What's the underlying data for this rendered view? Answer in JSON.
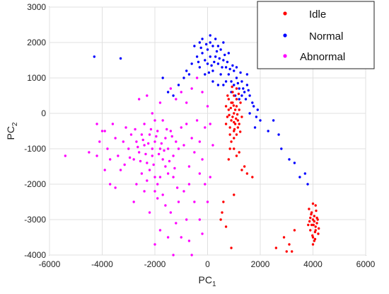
{
  "chart_data": {
    "type": "scatter",
    "title": "",
    "xlabel_main": "PC",
    "xlabel_sub": "1",
    "ylabel_main": "PC",
    "ylabel_sub": "2",
    "xlim": [
      -6000,
      6000
    ],
    "ylim": [
      -4000,
      3000
    ],
    "xticks": [
      -6000,
      -4000,
      -2000,
      0,
      2000,
      4000,
      6000
    ],
    "yticks": [
      3000,
      2000,
      1000,
      0,
      -1000,
      -2000,
      -3000,
      -4000
    ],
    "xtick_labels": [
      "-6000",
      "-4000",
      "-2000",
      "0",
      "2000",
      "4000",
      "6000"
    ],
    "ytick_labels": [
      "3000",
      "2000",
      "1000",
      "0",
      "-1000",
      "-2000",
      "-3000",
      "-4000"
    ],
    "grid": true,
    "legend_position": "top-right",
    "series": [
      {
        "name": "Idle",
        "color": "#ff0000",
        "points": [
          [
            900,
            300
          ],
          [
            1000,
            500
          ],
          [
            1100,
            200
          ],
          [
            800,
            100
          ],
          [
            950,
            -100
          ],
          [
            1050,
            -300
          ],
          [
            1150,
            -200
          ],
          [
            850,
            -400
          ],
          [
            1000,
            -500
          ],
          [
            1200,
            100
          ],
          [
            700,
            200
          ],
          [
            900,
            -200
          ],
          [
            1100,
            -600
          ],
          [
            1000,
            0
          ],
          [
            800,
            400
          ],
          [
            1250,
            300
          ],
          [
            950,
            600
          ],
          [
            1100,
            700
          ],
          [
            1300,
            -100
          ],
          [
            750,
            -100
          ],
          [
            1000,
            -700
          ],
          [
            900,
            -800
          ],
          [
            1150,
            -400
          ],
          [
            850,
            -600
          ],
          [
            1050,
            100
          ],
          [
            1200,
            -300
          ],
          [
            700,
            -300
          ],
          [
            950,
            300
          ],
          [
            1100,
            400
          ],
          [
            1000,
            -250
          ],
          [
            880,
            150
          ],
          [
            1180,
            550
          ],
          [
            820,
            -50
          ],
          [
            1020,
            -450
          ],
          [
            930,
            750
          ],
          [
            1080,
            -150
          ],
          [
            1240,
            -520
          ],
          [
            760,
            500
          ],
          [
            990,
            220
          ],
          [
            1130,
            -30
          ],
          [
            1000,
            -1000
          ],
          [
            1100,
            -1200
          ],
          [
            850,
            -1000
          ],
          [
            1300,
            -1600
          ],
          [
            1500,
            -1700
          ],
          [
            1700,
            -1800
          ],
          [
            600,
            -2500
          ],
          [
            550,
            -2800
          ],
          [
            500,
            -3000
          ],
          [
            1000,
            -2300
          ],
          [
            1400,
            -1500
          ],
          [
            800,
            -1300
          ],
          [
            2900,
            -3500
          ],
          [
            3100,
            -3700
          ],
          [
            3200,
            -3900
          ],
          [
            3300,
            -3300
          ],
          [
            2600,
            -3800
          ],
          [
            3000,
            -3900
          ],
          [
            900,
            -3800
          ],
          [
            700,
            -3200
          ],
          [
            1200,
            -1100
          ],
          [
            4000,
            -3000
          ],
          [
            4100,
            -3200
          ],
          [
            3950,
            -2800
          ],
          [
            4150,
            -3100
          ],
          [
            4050,
            -2900
          ],
          [
            3900,
            -3300
          ],
          [
            4200,
            -3400
          ],
          [
            4000,
            -3500
          ],
          [
            3850,
            -2700
          ],
          [
            4100,
            -2600
          ],
          [
            4050,
            -3600
          ],
          [
            3950,
            -3150
          ],
          [
            4180,
            -3000
          ],
          [
            3900,
            -2950
          ],
          [
            4080,
            -3350
          ],
          [
            4000,
            -3700
          ],
          [
            4120,
            -2750
          ],
          [
            3870,
            -3050
          ],
          [
            4220,
            -3250
          ],
          [
            3980,
            -3450
          ],
          [
            4050,
            -3050
          ],
          [
            4100,
            -3300
          ],
          [
            3930,
            -2850
          ],
          [
            4150,
            -2950
          ],
          [
            4020,
            -3150
          ],
          [
            4000,
            -2550
          ],
          [
            4080,
            -3550
          ],
          [
            3820,
            -3150
          ]
        ]
      },
      {
        "name": "Normal",
        "color": "#0000ff",
        "points": [
          [
            0,
            1800
          ],
          [
            100,
            2000
          ],
          [
            200,
            1900
          ],
          [
            -200,
            1700
          ],
          [
            300,
            1600
          ],
          [
            -100,
            1500
          ],
          [
            400,
            1400
          ],
          [
            500,
            1800
          ],
          [
            600,
            1500
          ],
          [
            -300,
            1300
          ],
          [
            200,
            1200
          ],
          [
            700,
            1300
          ],
          [
            800,
            1100
          ],
          [
            900,
            900
          ],
          [
            1000,
            800
          ],
          [
            1100,
            1000
          ],
          [
            1200,
            700
          ],
          [
            1300,
            900
          ],
          [
            1400,
            600
          ],
          [
            1500,
            800
          ],
          [
            1600,
            500
          ],
          [
            1200,
            400
          ],
          [
            1000,
            1200
          ],
          [
            300,
            2100
          ],
          [
            -400,
            1600
          ],
          [
            -600,
            1400
          ],
          [
            -800,
            1200
          ],
          [
            0,
            1400
          ],
          [
            500,
            1100
          ],
          [
            600,
            2000
          ],
          [
            -200,
            2100
          ],
          [
            100,
            1600
          ],
          [
            400,
            1900
          ],
          [
            800,
            1700
          ],
          [
            -500,
            1900
          ],
          [
            700,
            900
          ],
          [
            900,
            600
          ],
          [
            1100,
            1300
          ],
          [
            1300,
            500
          ],
          [
            1500,
            1100
          ],
          [
            200,
            900
          ],
          [
            -100,
            1100
          ],
          [
            350,
            1750
          ],
          [
            150,
            1350
          ],
          [
            -50,
            1950
          ],
          [
            650,
            1650
          ],
          [
            850,
            1250
          ],
          [
            1050,
            500
          ],
          [
            1250,
            1150
          ],
          [
            1450,
            400
          ],
          [
            -350,
            1450
          ],
          [
            50,
            1150
          ],
          [
            450,
            1550
          ],
          [
            750,
            1450
          ],
          [
            950,
            1350
          ],
          [
            -250,
            1850
          ],
          [
            250,
            1450
          ],
          [
            550,
            1300
          ],
          [
            1150,
            850
          ],
          [
            1350,
            700
          ],
          [
            1550,
            650
          ],
          [
            -700,
            1100
          ],
          [
            -900,
            1000
          ],
          [
            -1100,
            800
          ],
          [
            1700,
            300
          ],
          [
            1900,
            100
          ],
          [
            2000,
            -200
          ],
          [
            1800,
            -400
          ],
          [
            2300,
            -500
          ],
          [
            2500,
            -200
          ],
          [
            2700,
            -600
          ],
          [
            2800,
            -1000
          ],
          [
            3100,
            -1300
          ],
          [
            3300,
            -1400
          ],
          [
            3500,
            -1800
          ],
          [
            3700,
            -1700
          ],
          [
            3800,
            -2000
          ],
          [
            600,
            800
          ],
          [
            400,
            800
          ],
          [
            -4300,
            1600
          ],
          [
            -3300,
            1550
          ],
          [
            -1500,
            600
          ],
          [
            -1700,
            1000
          ],
          [
            -1300,
            500
          ],
          [
            1750,
            200
          ],
          [
            1600,
            0
          ],
          [
            1850,
            -100
          ],
          [
            100,
            2200
          ],
          [
            -300,
            2000
          ]
        ]
      },
      {
        "name": "Abnormal",
        "color": "#ff00ff",
        "points": [
          [
            -2000,
            -800
          ],
          [
            -2200,
            -600
          ],
          [
            -1800,
            -1000
          ],
          [
            -2400,
            -900
          ],
          [
            -1600,
            -700
          ],
          [
            -2100,
            -1200
          ],
          [
            -1900,
            -500
          ],
          [
            -2300,
            -1400
          ],
          [
            -1700,
            -1300
          ],
          [
            -2500,
            -600
          ],
          [
            -1500,
            -1000
          ],
          [
            -2000,
            -200
          ],
          [
            -2200,
            -1600
          ],
          [
            -1800,
            -1800
          ],
          [
            -2600,
            -1100
          ],
          [
            -1400,
            -500
          ],
          [
            -2100,
            0
          ],
          [
            -1900,
            -2000
          ],
          [
            -2700,
            -800
          ],
          [
            -1300,
            -1200
          ],
          [
            -2400,
            -300
          ],
          [
            -1600,
            -1500
          ],
          [
            -2000,
            -2200
          ],
          [
            -1200,
            -800
          ],
          [
            -2800,
            -1300
          ],
          [
            -1700,
            -200
          ],
          [
            -2300,
            -1900
          ],
          [
            -1500,
            -1700
          ],
          [
            -2900,
            -600
          ],
          [
            -1100,
            -1000
          ],
          [
            -3000,
            -1000
          ],
          [
            -1000,
            -400
          ],
          [
            -2500,
            -1700
          ],
          [
            -1900,
            -2400
          ],
          [
            -1300,
            -1800
          ],
          [
            -3200,
            -800
          ],
          [
            -900,
            -900
          ],
          [
            -2700,
            -2000
          ],
          [
            -1600,
            -2600
          ],
          [
            -3400,
            -1200
          ],
          [
            -800,
            -300
          ],
          [
            -3100,
            -400
          ],
          [
            -1400,
            -2800
          ],
          [
            -2200,
            -2800
          ],
          [
            -700,
            -1500
          ],
          [
            -3500,
            -700
          ],
          [
            -600,
            -700
          ],
          [
            -1200,
            -3100
          ],
          [
            -1800,
            -3300
          ],
          [
            -2800,
            -2500
          ],
          [
            -500,
            -1100
          ],
          [
            -3600,
            -300
          ],
          [
            -400,
            -200
          ],
          [
            -1000,
            -3500
          ],
          [
            -2000,
            -3700
          ],
          [
            -3300,
            -1600
          ],
          [
            -300,
            -800
          ],
          [
            -3800,
            -1000
          ],
          [
            -200,
            -1300
          ],
          [
            -900,
            -2200
          ],
          [
            -4000,
            -500
          ],
          [
            -100,
            -400
          ],
          [
            -4200,
            -300
          ],
          [
            -800,
            -3000
          ],
          [
            -1500,
            -3500
          ],
          [
            -5400,
            -1200
          ],
          [
            -4500,
            -1100
          ],
          [
            -4200,
            -1200
          ],
          [
            -3900,
            -1600
          ],
          [
            -3700,
            -2000
          ],
          [
            -3500,
            -2100
          ],
          [
            -2300,
            500
          ],
          [
            -2600,
            400
          ],
          [
            -1800,
            300
          ],
          [
            -1400,
            700
          ],
          [
            -1200,
            400
          ],
          [
            -1000,
            600
          ],
          [
            -800,
            300
          ],
          [
            -600,
            700
          ],
          [
            -400,
            1000
          ],
          [
            -200,
            600
          ],
          [
            0,
            200
          ],
          [
            100,
            -300
          ],
          [
            200,
            -900
          ],
          [
            100,
            -1800
          ],
          [
            0,
            -2500
          ],
          [
            -200,
            -3400
          ],
          [
            -600,
            -4000
          ],
          [
            -700,
            -3600
          ],
          [
            -300,
            -3000
          ],
          [
            -1100,
            -2500
          ],
          [
            -1300,
            -4000
          ],
          [
            -2100,
            -1000
          ],
          [
            -1950,
            -650
          ],
          [
            -2250,
            -850
          ],
          [
            -1850,
            -1150
          ],
          [
            -2150,
            -450
          ],
          [
            -1750,
            -850
          ],
          [
            -2350,
            -1150
          ],
          [
            -2050,
            -1450
          ],
          [
            -1650,
            -1050
          ],
          [
            -2450,
            -750
          ],
          [
            -1550,
            -450
          ],
          [
            -2550,
            -1350
          ],
          [
            -1450,
            -1350
          ],
          [
            -2650,
            -950
          ],
          [
            -1350,
            -650
          ],
          [
            -2750,
            -450
          ],
          [
            -2950,
            -1250
          ],
          [
            -3150,
            -1450
          ],
          [
            -1250,
            -1550
          ],
          [
            -1150,
            -2100
          ],
          [
            -2000,
            -1800
          ],
          [
            -2400,
            -2200
          ],
          [
            -1700,
            -2300
          ],
          [
            -4100,
            -800
          ],
          [
            -3900,
            -500
          ],
          [
            -3700,
            -1300
          ],
          [
            -500,
            -2500
          ],
          [
            -700,
            -2000
          ],
          [
            -100,
            -2000
          ],
          [
            -300,
            -1700
          ]
        ]
      }
    ]
  }
}
